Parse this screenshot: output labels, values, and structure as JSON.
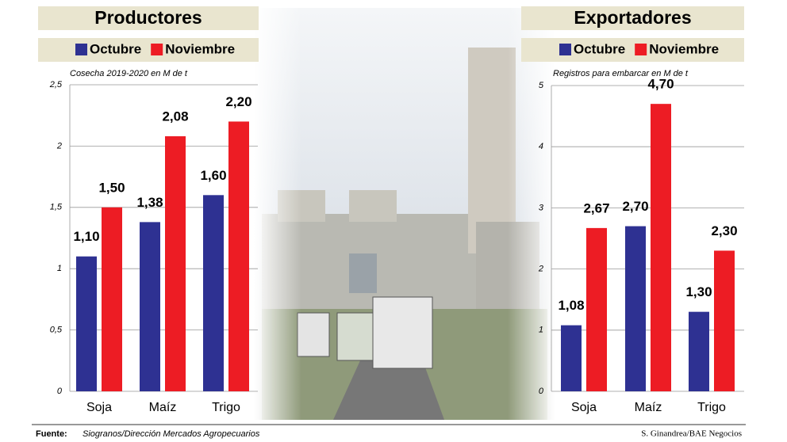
{
  "chart_data": [
    {
      "type": "bar",
      "title": "Productores",
      "subtitle": "Cosecha 2019-2020 en M de t",
      "categories": [
        "Soja",
        "Maíz",
        "Trigo"
      ],
      "series": [
        {
          "name": "Octubre",
          "color": "#2e3192",
          "values": [
            1.1,
            1.38,
            1.6
          ],
          "value_labels": [
            "1,10",
            "1,38",
            "1,60"
          ]
        },
        {
          "name": "Noviembre",
          "color": "#ed1c24",
          "values": [
            1.5,
            2.08,
            2.2
          ],
          "value_labels": [
            "1,50",
            "2,08",
            "2,20"
          ]
        }
      ],
      "ylim": [
        0,
        2.5
      ],
      "yticks": [
        0,
        {
          "value": 0.5,
          "label": "0,5"
        },
        1,
        {
          "value": 1.5,
          "label": "1,5"
        },
        2,
        {
          "value": 2.5,
          "label": "2,5"
        }
      ],
      "grid": true
    },
    {
      "type": "bar",
      "title": "Exportadores",
      "subtitle": "Registros para embarcar en M de t",
      "categories": [
        "Soja",
        "Maíz",
        "Trigo"
      ],
      "series": [
        {
          "name": "Octubre",
          "color": "#2e3192",
          "values": [
            1.08,
            2.7,
            1.3
          ],
          "value_labels": [
            "1,08",
            "2,70",
            "1,30"
          ]
        },
        {
          "name": "Noviembre",
          "color": "#ed1c24",
          "values": [
            2.67,
            4.7,
            2.3
          ],
          "value_labels": [
            "2,67",
            "4,70",
            "2,30"
          ]
        }
      ],
      "ylim": [
        0,
        5
      ],
      "yticks": [
        0,
        1,
        2,
        3,
        4,
        5
      ],
      "grid": true
    }
  ],
  "source_label": "Fuente:",
  "source": "Siogranos/Dirección Mercados Agropecuarios",
  "credit": "S. Ginandrea/BAE Negocios"
}
